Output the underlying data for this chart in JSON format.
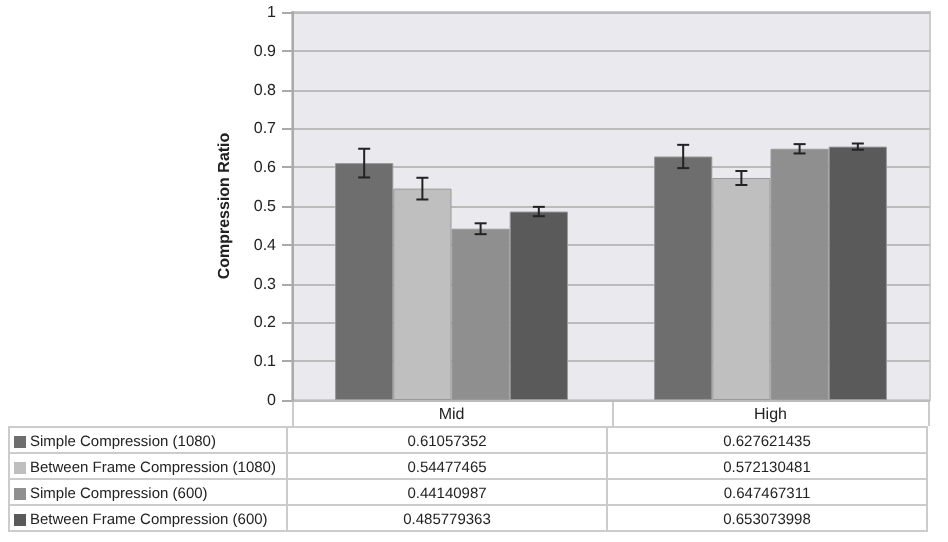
{
  "chart_data": {
    "type": "bar",
    "ylabel": "Compression Ratio",
    "categories": [
      "Mid",
      "High"
    ],
    "series": [
      {
        "name": "Simple Compression (1080)",
        "color": "#6e6e6e",
        "values": [
          0.61057352,
          0.627621435
        ],
        "errors": [
          0.037,
          0.03
        ]
      },
      {
        "name": "Between Frame Compression (1080)",
        "color": "#bfbfbf",
        "values": [
          0.54477465,
          0.572130481
        ],
        "errors": [
          0.028,
          0.018
        ]
      },
      {
        "name": "Simple Compression (600)",
        "color": "#8f8f8f",
        "values": [
          0.44140987,
          0.647467311
        ],
        "errors": [
          0.014,
          0.012
        ]
      },
      {
        "name": "Between Frame Compression (600)",
        "color": "#5a5a5a",
        "values": [
          0.485779363,
          0.653073998
        ],
        "errors": [
          0.012,
          0.008
        ]
      }
    ],
    "ylim": [
      0,
      1
    ],
    "yticks": [
      0,
      0.1,
      0.2,
      0.3,
      0.4,
      0.5,
      0.6,
      0.7,
      0.8,
      0.9,
      1
    ],
    "grid": "y",
    "legend": "bottom",
    "data_labels": true
  }
}
